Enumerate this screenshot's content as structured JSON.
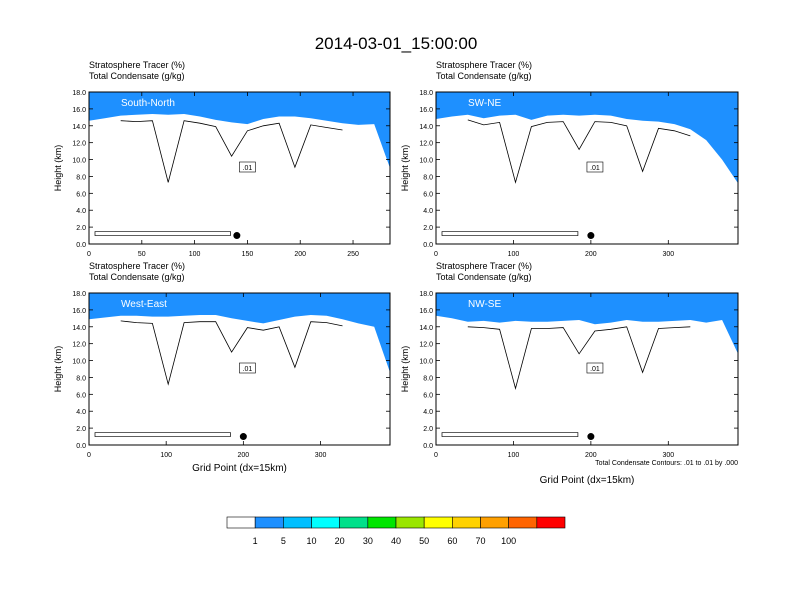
{
  "title": "2014-03-01_15:00:00",
  "panel_header": {
    "line1": "Stratosphere Tracer   (%)",
    "line2": "Total Condensate   (g/kg)"
  },
  "ylabel": "Height (km)",
  "xlabel": "Grid Point (dx=15km)",
  "contour_note": "Total Condensate Contours: .01 to .01 by .000",
  "contour_label": ".01",
  "colorbar": {
    "labels": [
      "1",
      "5",
      "10",
      "20",
      "30",
      "40",
      "50",
      "60",
      "70",
      "100"
    ],
    "colors": [
      "#ffffff",
      "#1e90ff",
      "#00bfff",
      "#00ffff",
      "#00e08a",
      "#00e600",
      "#9ae600",
      "#ffff00",
      "#ffd200",
      "#ffa000",
      "#ff6400",
      "#ff0000"
    ]
  },
  "chart_data": [
    {
      "type": "contour",
      "name": "South-North",
      "xlim": [
        0,
        285
      ],
      "ylim": [
        0,
        18
      ],
      "xticks": [
        0,
        50,
        100,
        150,
        200,
        250
      ],
      "yticks": [
        0,
        2,
        4,
        6,
        8,
        10,
        12,
        14,
        16,
        18
      ],
      "tracer_base_km": [
        14.6,
        14.9,
        15.2,
        15.3,
        15.4,
        15.3,
        15.4,
        15.1,
        14.7,
        14.4,
        14.2,
        14.8,
        15.1,
        15.1,
        14.9,
        14.6,
        14.3,
        14.1,
        14.2,
        9.0
      ],
      "marker_x": 140,
      "marker_y_km": 1.0
    },
    {
      "type": "contour",
      "name": "SW-NE",
      "xlim": [
        0,
        390
      ],
      "ylim": [
        0,
        18
      ],
      "xticks": [
        0,
        100,
        200,
        300
      ],
      "yticks": [
        0,
        2,
        4,
        6,
        8,
        10,
        12,
        14,
        16,
        18
      ],
      "tracer_base_km": [
        14.8,
        15.1,
        15.3,
        14.9,
        15.2,
        15.3,
        14.7,
        15.2,
        15.3,
        15.2,
        15.3,
        15.2,
        14.8,
        14.6,
        14.5,
        14.2,
        13.6,
        12.3,
        10.0,
        7.2
      ],
      "marker_x": 200,
      "marker_y_km": 1.0
    },
    {
      "type": "contour",
      "name": "West-East",
      "xlim": [
        0,
        390
      ],
      "ylim": [
        0,
        18
      ],
      "xticks": [
        0,
        100,
        200,
        300
      ],
      "yticks": [
        0,
        2,
        4,
        6,
        8,
        10,
        12,
        14,
        16,
        18
      ],
      "tracer_base_km": [
        14.9,
        15.1,
        15.3,
        15.3,
        15.2,
        15.2,
        15.3,
        15.4,
        15.4,
        15.0,
        14.7,
        14.4,
        14.8,
        15.2,
        15.4,
        15.3,
        14.9,
        14.4,
        14.0,
        8.6
      ],
      "marker_x": 200,
      "marker_y_km": 1.0
    },
    {
      "type": "contour",
      "name": "NW-SE",
      "xlim": [
        0,
        390
      ],
      "ylim": [
        0,
        18
      ],
      "xticks": [
        0,
        100,
        200,
        300
      ],
      "yticks": [
        0,
        2,
        4,
        6,
        8,
        10,
        12,
        14,
        16,
        18
      ],
      "tracer_base_km": [
        15.3,
        15.0,
        14.6,
        14.7,
        14.5,
        14.7,
        14.6,
        14.6,
        14.7,
        14.8,
        14.3,
        14.5,
        14.8,
        14.6,
        14.6,
        14.7,
        14.8,
        14.5,
        14.8,
        10.8
      ],
      "marker_x": 200,
      "marker_y_km": 1.0
    }
  ]
}
